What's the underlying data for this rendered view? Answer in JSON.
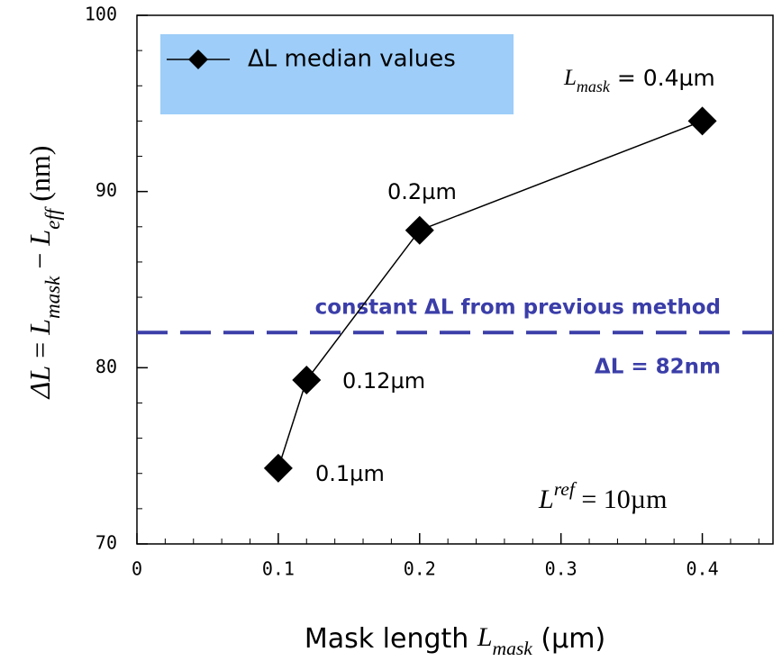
{
  "chart_data": {
    "type": "line",
    "x": [
      0.1,
      0.12,
      0.2,
      0.4
    ],
    "series": [
      {
        "name": "ΔL median values",
        "color": "#000000",
        "values": [
          74.3,
          79.3,
          87.8,
          94.0
        ]
      }
    ],
    "point_labels": [
      "0.1µm",
      "0.12µm",
      "0.2µm",
      ""
    ],
    "top_label": [
      {
        "text": "L",
        "style": "italic"
      },
      {
        "text": "mask",
        "style": "sub"
      },
      {
        "text": " = 0.4µm",
        "style": "normal"
      }
    ],
    "xlabel": [
      {
        "text": "Mask length ",
        "style": "normal"
      },
      {
        "text": "L",
        "style": "italic"
      },
      {
        "text": "mask",
        "style": "sub"
      },
      {
        "text": " (µm)",
        "style": "normal"
      }
    ],
    "ylabel": [
      {
        "text": "ΔL",
        "style": "italic"
      },
      {
        "text": " = ",
        "style": "normal"
      },
      {
        "text": "L",
        "style": "italic"
      },
      {
        "text": "mask",
        "style": "sub"
      },
      {
        "text": " − ",
        "style": "normal"
      },
      {
        "text": "L",
        "style": "italic"
      },
      {
        "text": "eff",
        "style": "sub"
      },
      {
        "text": " (nm)",
        "style": "normal"
      }
    ],
    "reference_line": {
      "value": 82,
      "color": "#3b3ea8",
      "label": "constant ΔL from previous method",
      "value_label": "ΔL = 82nm"
    },
    "note": [
      {
        "text": "L",
        "style": "italic"
      },
      {
        "text": "ref",
        "style": "sup"
      },
      {
        "text": " = 10µm",
        "style": "normal"
      }
    ],
    "legend_color": "#9dcdf8",
    "xlim": [
      0,
      0.45
    ],
    "ylim": [
      70,
      100
    ],
    "xticks": [
      0,
      0.1,
      0.2,
      0.3,
      0.4
    ],
    "yticks": [
      70,
      80,
      90,
      100
    ],
    "xminor": 0.02,
    "yminor": 2
  }
}
